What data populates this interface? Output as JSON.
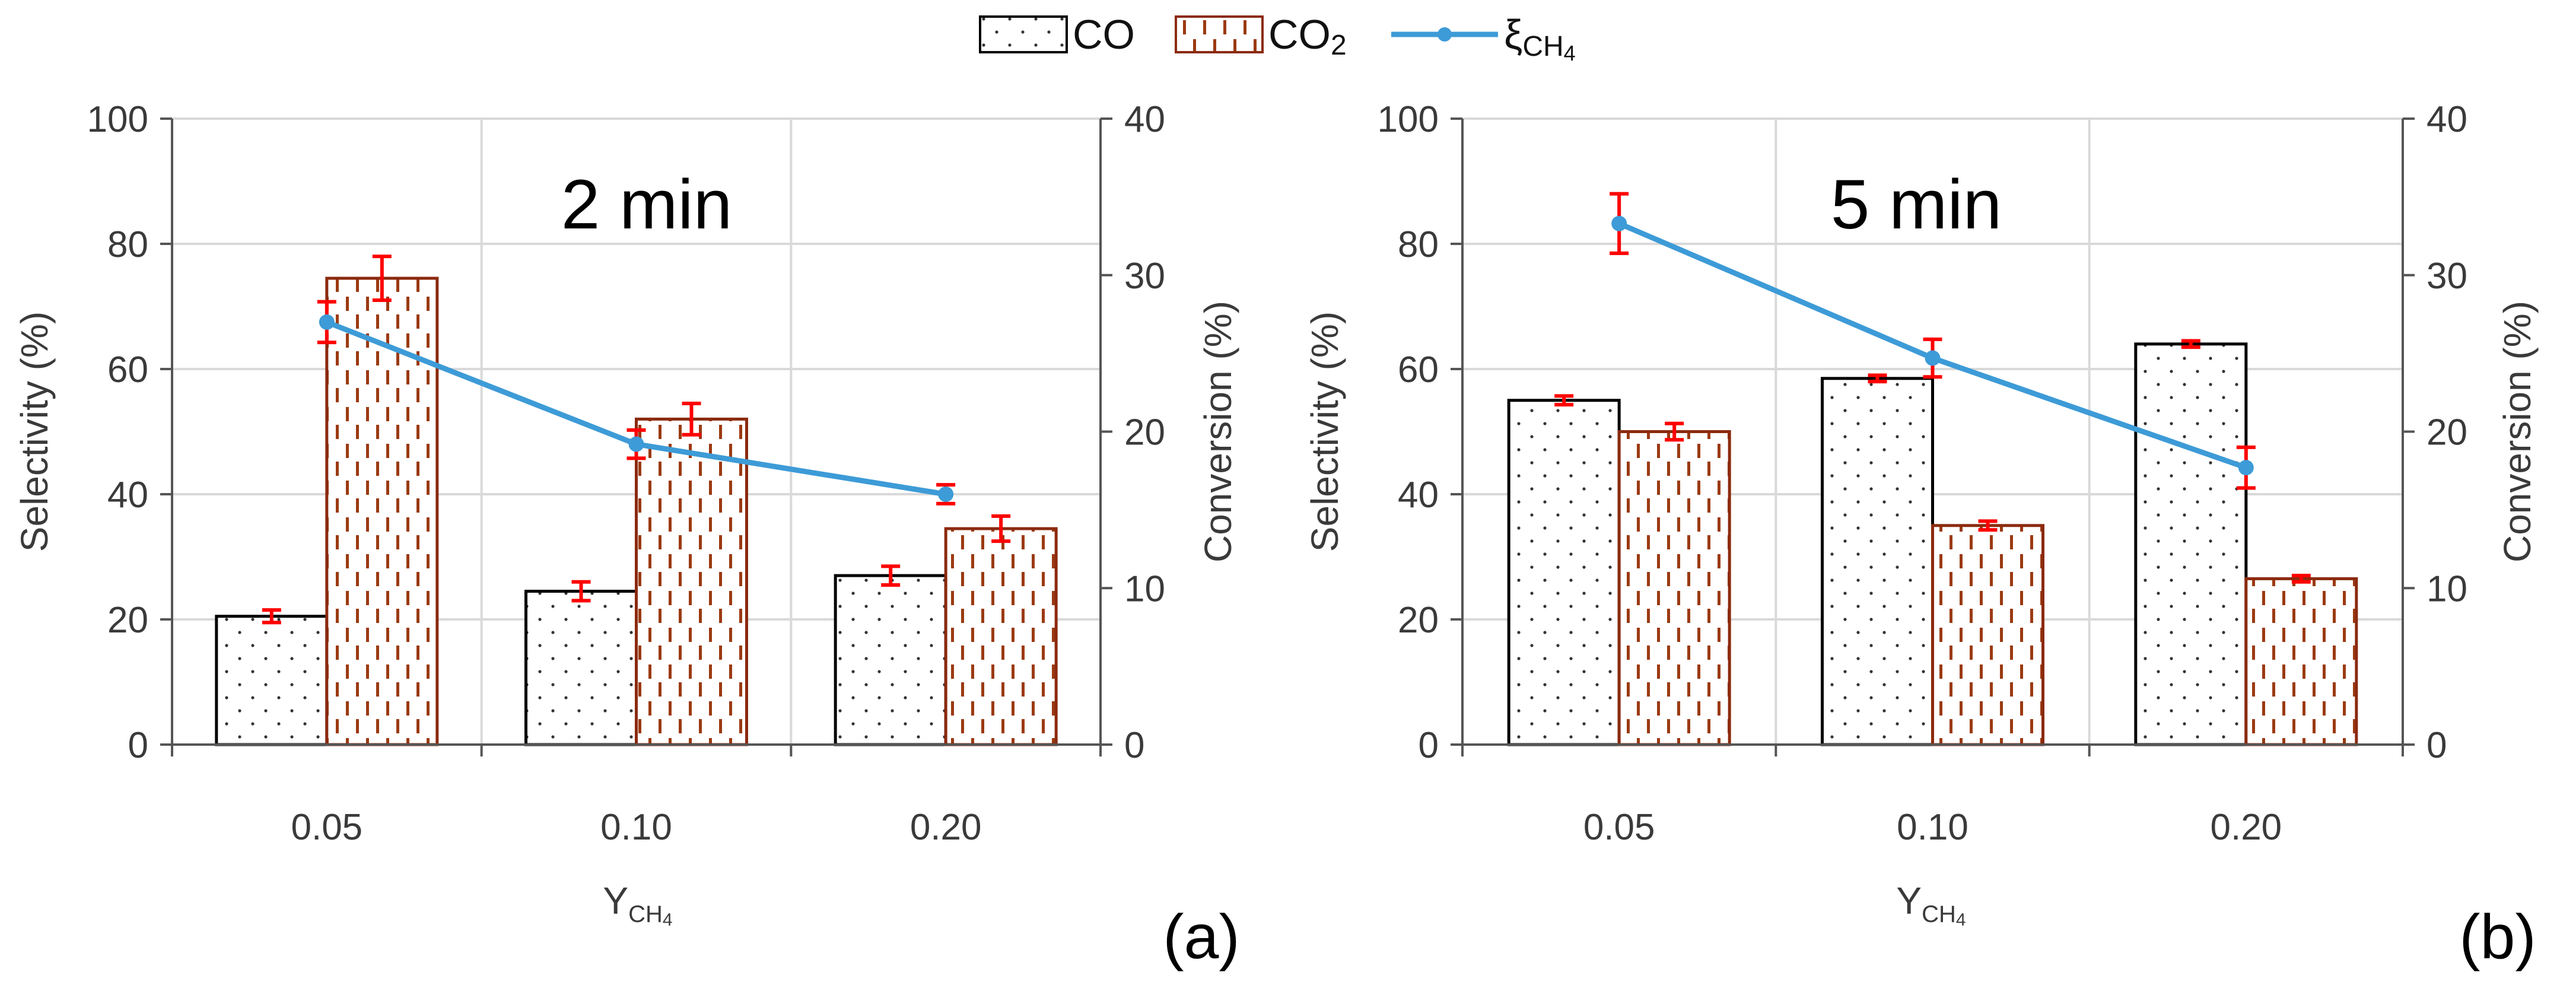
{
  "legend": {
    "co": "CO",
    "co2_base": "CO",
    "co2_sub": "2",
    "xi_base": "ξ",
    "xi_sub": "CH",
    "xi_subsub": "4"
  },
  "colors": {
    "co_bar_stroke": "#000000",
    "co2_bar_stroke": "#8B2A0E",
    "line": "#3D9BD7",
    "error_bar": "#FF0000",
    "grid": "#D9D9D9"
  },
  "chart_data": [
    {
      "type": "bar",
      "panel_label": "(a)",
      "title": "2 min",
      "categories": [
        "0.05",
        "0.10",
        "0.20"
      ],
      "xlabel_base": "Y",
      "xlabel_sub": "CH",
      "xlabel_subsub": "4",
      "ylabel": "Selectivity (%)",
      "y2label": "Conversion (%)",
      "ylim": [
        0,
        100
      ],
      "y2lim": [
        0,
        40
      ],
      "yticks": [
        "0",
        "20",
        "40",
        "60",
        "80",
        "100"
      ],
      "y2ticks": [
        "0",
        "10",
        "20",
        "30",
        "40"
      ],
      "grid": true,
      "series": [
        {
          "name": "CO",
          "kind": "bar",
          "axis": "left",
          "values": [
            20.5,
            24.5,
            27
          ],
          "errors": [
            1.0,
            1.5,
            1.5
          ]
        },
        {
          "name": "CO2",
          "kind": "bar",
          "axis": "left",
          "values": [
            74.5,
            52,
            34.5
          ],
          "errors": [
            3.5,
            2.5,
            2.0
          ]
        },
        {
          "name": "ξCH4",
          "kind": "line",
          "axis": "right",
          "values": [
            27,
            19.2,
            16
          ],
          "errors": [
            1.3,
            0.9,
            0.6
          ]
        }
      ]
    },
    {
      "type": "bar",
      "panel_label": "(b)",
      "title": "5 min",
      "categories": [
        "0.05",
        "0.10",
        "0.20"
      ],
      "xlabel_base": "Y",
      "xlabel_sub": "CH",
      "xlabel_subsub": "4",
      "ylabel": "Selectivity (%)",
      "y2label": "Conversion (%)",
      "ylim": [
        0,
        100
      ],
      "y2lim": [
        0,
        40
      ],
      "yticks": [
        "0",
        "20",
        "40",
        "60",
        "80",
        "100"
      ],
      "y2ticks": [
        "0",
        "10",
        "20",
        "30",
        "40"
      ],
      "grid": true,
      "series": [
        {
          "name": "CO",
          "kind": "bar",
          "axis": "left",
          "values": [
            55,
            58.5,
            64
          ],
          "errors": [
            0.7,
            0.5,
            0.5
          ]
        },
        {
          "name": "CO2",
          "kind": "bar",
          "axis": "left",
          "values": [
            50,
            35,
            26.5
          ],
          "errors": [
            1.3,
            0.7,
            0.5
          ]
        },
        {
          "name": "ξCH4",
          "kind": "line",
          "axis": "right",
          "values": [
            33.3,
            24.7,
            17.7
          ],
          "errors": [
            1.9,
            1.2,
            1.3
          ]
        }
      ]
    }
  ]
}
